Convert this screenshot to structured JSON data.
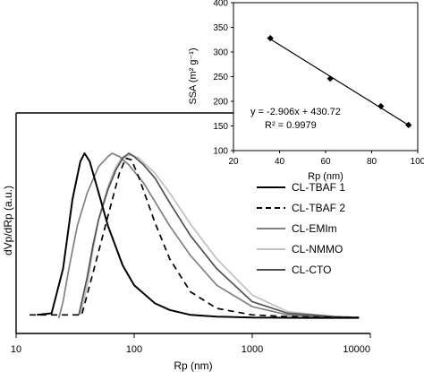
{
  "chart_data": [
    {
      "type": "line",
      "xscale": "log",
      "xlabel": "Rp (nm)",
      "ylabel": "dVp/dRp (a.u.)",
      "xlim": [
        10,
        10000
      ],
      "xticks": [
        "10",
        "100",
        "1000",
        "10000"
      ],
      "legend": "right",
      "series": [
        {
          "name": "CL-TBAF 1",
          "color": "#000000",
          "dash": "",
          "x": [
            15,
            20,
            25,
            30,
            35,
            38,
            42,
            50,
            60,
            80,
            100,
            150,
            200,
            300,
            500,
            1000,
            3000,
            8000
          ],
          "y": [
            0.02,
            0.03,
            0.3,
            0.72,
            0.95,
            1.0,
            0.95,
            0.76,
            0.56,
            0.32,
            0.2,
            0.09,
            0.05,
            0.02,
            0.01,
            0.004,
            0.002,
            0.002
          ]
        },
        {
          "name": "CL-TBAF 2",
          "color": "#000000",
          "dash": "7,5",
          "x": [
            13,
            25,
            33,
            36,
            45,
            60,
            75,
            85,
            95,
            110,
            150,
            200,
            300,
            500,
            1000,
            2000,
            5000,
            8000
          ],
          "y": [
            0.02,
            0.02,
            0.02,
            0.02,
            0.28,
            0.62,
            0.88,
            0.97,
            0.96,
            0.85,
            0.58,
            0.36,
            0.16,
            0.06,
            0.02,
            0.01,
            0.005,
            0.005
          ]
        },
        {
          "name": "CL-EMIm",
          "color": "#808080",
          "dash": "",
          "x": [
            23,
            25,
            28,
            33,
            40,
            50,
            60,
            65,
            75,
            90,
            120,
            200,
            300,
            500,
            1000,
            2000,
            5000,
            8000
          ],
          "y": [
            0.0,
            0.1,
            0.3,
            0.56,
            0.76,
            0.92,
            0.98,
            1.0,
            0.98,
            0.93,
            0.82,
            0.56,
            0.38,
            0.2,
            0.07,
            0.02,
            0.005,
            0.003
          ]
        },
        {
          "name": "CL-NMMO",
          "color": "#c0c0c0",
          "dash": "",
          "x": [
            35,
            40,
            45,
            50,
            60,
            70,
            80,
            95,
            110,
            150,
            200,
            300,
            500,
            1000,
            2000,
            5000,
            8000
          ],
          "y": [
            0.02,
            0.2,
            0.42,
            0.6,
            0.8,
            0.92,
            0.98,
            0.99,
            0.97,
            0.88,
            0.76,
            0.57,
            0.36,
            0.14,
            0.04,
            0.01,
            0.005
          ]
        },
        {
          "name": "CL-CTO",
          "color": "#505050",
          "dash": "",
          "x": [
            34,
            40,
            45,
            50,
            60,
            70,
            80,
            90,
            100,
            120,
            150,
            200,
            300,
            500,
            1000,
            2000,
            5000,
            8000
          ],
          "y": [
            0.02,
            0.25,
            0.45,
            0.6,
            0.78,
            0.9,
            0.97,
            1.0,
            0.98,
            0.93,
            0.85,
            0.7,
            0.5,
            0.3,
            0.1,
            0.03,
            0.01,
            0.005
          ]
        }
      ]
    },
    {
      "type": "scatter",
      "xlabel": "Rp (nm)",
      "ylabel": "SSA (m² g⁻¹)",
      "xlim": [
        20,
        100
      ],
      "ylim": [
        100,
        400
      ],
      "xticks": [
        "20",
        "40",
        "60",
        "80",
        "100"
      ],
      "yticks": [
        "100",
        "150",
        "200",
        "250",
        "300",
        "350",
        "400"
      ],
      "points": {
        "x": [
          36,
          62,
          84,
          96
        ],
        "y": [
          328,
          246,
          190,
          152
        ]
      },
      "fit": {
        "slope": -2.906,
        "intercept": 430.72,
        "x_range": [
          35,
          97
        ]
      },
      "annotation": {
        "equation": "y = -2.906x + 430.72",
        "r2": "R² = 0.9979"
      }
    }
  ]
}
